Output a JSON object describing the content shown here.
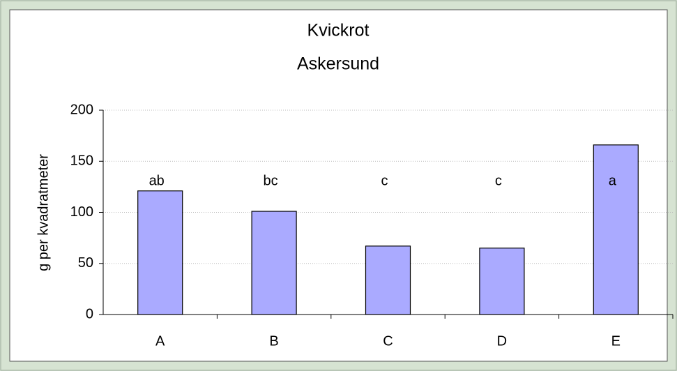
{
  "chart_data": {
    "type": "bar",
    "title": "Kvickrot",
    "subtitle": "Askersund",
    "y_label": "g per kvadratmeter",
    "categories": [
      "A",
      "B",
      "C",
      "D",
      "E"
    ],
    "values": [
      121,
      101,
      67,
      65,
      166
    ],
    "annotations": [
      "ab",
      "bc",
      "c",
      "c",
      "a"
    ],
    "color": "#aaaaff",
    "ylim": [
      0,
      200
    ],
    "yticks": [
      0,
      50,
      100,
      150,
      200
    ],
    "grid": true
  }
}
